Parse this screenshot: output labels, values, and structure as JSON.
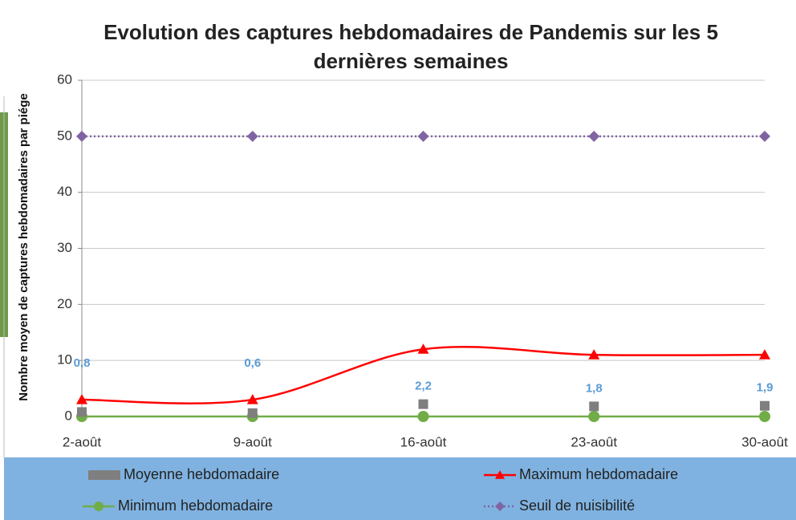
{
  "chart_data": {
    "type": "line",
    "title": "Evolution des captures hebdomadaires de Pandemis sur les 5 dernières semaines",
    "y_label": "Nombre moyen de captures hebdomadaires par piége",
    "categories": [
      "2-août",
      "9-août",
      "16-août",
      "23-août",
      "30-août"
    ],
    "ylim": [
      0,
      60
    ],
    "yticks": [
      0,
      10,
      20,
      30,
      40,
      50,
      60
    ],
    "grid": true,
    "legend": "bottom",
    "series": [
      {
        "name": "Moyenne hebdomadaire",
        "color": "#7f7f7f",
        "marker": "square",
        "values": [
          0.8,
          0.6,
          2.2,
          1.8,
          1.9
        ],
        "value_labels": [
          "0,8",
          "0,6",
          "2,2",
          "1,8",
          "1,9"
        ]
      },
      {
        "name": "Maximum hebdomadaire",
        "color": "#ff0000",
        "marker": "triangle",
        "smooth": true,
        "values": [
          3,
          3,
          12,
          11,
          11
        ]
      },
      {
        "name": "Minimum hebdomadaire",
        "color": "#70ad47",
        "marker": "circle",
        "values": [
          0,
          0,
          0,
          0,
          0
        ]
      },
      {
        "name": "Seuil de nuisibilité",
        "color": "#8064a2",
        "marker": "diamond",
        "dash": "dotted",
        "values": [
          50,
          50,
          50,
          50,
          50
        ]
      }
    ]
  }
}
